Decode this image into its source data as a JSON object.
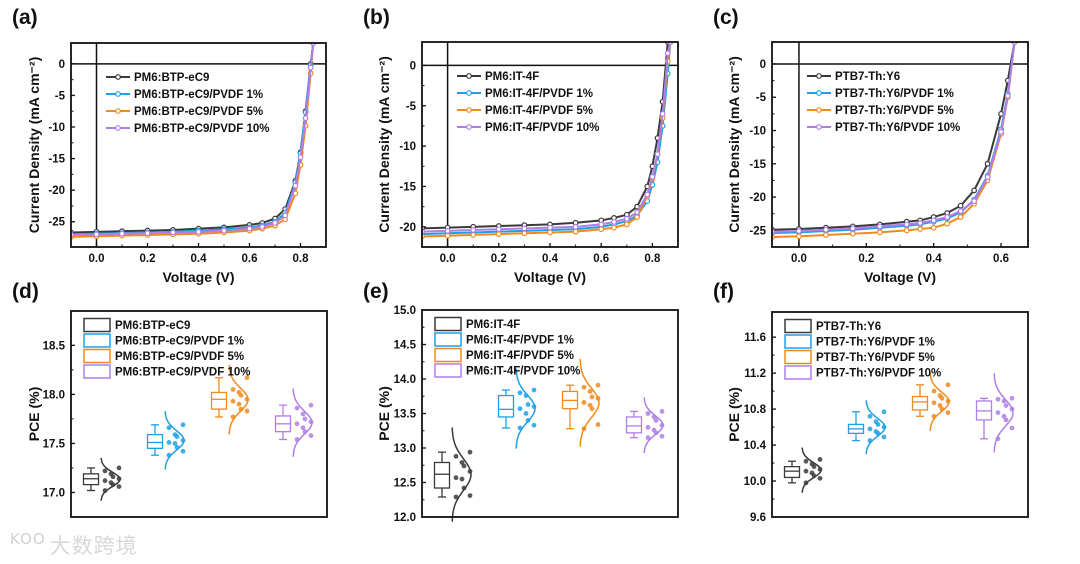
{
  "colors": {
    "s0": "#3a3a3a",
    "s1": "#1ea0e6",
    "s2": "#f08a1c",
    "s3": "#b07ee8"
  },
  "watermark": {
    "logo": "KOO",
    "text": "大数跨境"
  },
  "chart_data": [
    {
      "panel": "(a)",
      "type": "line",
      "xlabel": "Voltage (V)",
      "ylabel": "Current Density (mA cm⁻²)",
      "xlim": [
        -0.1,
        0.9
      ],
      "ylim": [
        -29,
        3.3
      ],
      "xticks": [
        "0.0",
        "0.2",
        "0.4",
        "0.6",
        "0.8"
      ],
      "xtick_values": [
        0,
        0.2,
        0.4,
        0.6,
        0.8
      ],
      "yticks": [
        "0",
        "-5",
        "-10",
        "-15",
        "-20",
        "-25"
      ],
      "ytick_values": [
        0,
        -5,
        -10,
        -15,
        -20,
        -25
      ],
      "x": [
        -0.1,
        0,
        0.1,
        0.2,
        0.3,
        0.4,
        0.5,
        0.6,
        0.65,
        0.7,
        0.74,
        0.78,
        0.8,
        0.82,
        0.84,
        0.85
      ],
      "series": [
        {
          "name": "PM6:BTP-eC9",
          "values": [
            -26.7,
            -26.6,
            -26.5,
            -26.4,
            -26.3,
            -26.1,
            -25.9,
            -25.5,
            -25.2,
            -24.5,
            -23,
            -18.5,
            -14,
            -7.5,
            0,
            3.3
          ]
        },
        {
          "name": "PM6:BTP-eC9/PVDF 1%",
          "values": [
            -27.0,
            -26.9,
            -26.8,
            -26.7,
            -26.6,
            -26.4,
            -26.2,
            -25.9,
            -25.6,
            -25.0,
            -23.6,
            -18.8,
            -14.2,
            -7.7,
            -0.2,
            3.3
          ]
        },
        {
          "name": "PM6:BTP-eC9/PVDF 5%",
          "values": [
            -27.4,
            -27.3,
            -27.2,
            -27.1,
            -27.0,
            -26.9,
            -26.7,
            -26.4,
            -26.1,
            -25.6,
            -24.6,
            -20.5,
            -16,
            -9.8,
            -1.5,
            3.3
          ]
        },
        {
          "name": "PM6:BTP-eC9/PVDF 10%",
          "values": [
            -27.1,
            -27.0,
            -26.9,
            -26.8,
            -26.7,
            -26.6,
            -26.4,
            -26.1,
            -25.8,
            -25.2,
            -24.0,
            -19.3,
            -14.8,
            -8.6,
            -0.6,
            3.3
          ]
        }
      ]
    },
    {
      "panel": "(b)",
      "type": "line",
      "xlabel": "Voltage (V)",
      "ylabel": "Current Density (mA cm⁻²)",
      "xlim": [
        -0.1,
        0.9
      ],
      "ylim": [
        -22.5,
        2.9
      ],
      "xticks": [
        "0.0",
        "0.2",
        "0.4",
        "0.6",
        "0.8"
      ],
      "xtick_values": [
        0,
        0.2,
        0.4,
        0.6,
        0.8
      ],
      "yticks": [
        "0",
        "-5",
        "-10",
        "-15",
        "-20"
      ],
      "ytick_values": [
        0,
        -5,
        -10,
        -15,
        -20
      ],
      "x": [
        -0.1,
        0,
        0.1,
        0.2,
        0.3,
        0.4,
        0.5,
        0.6,
        0.65,
        0.7,
        0.74,
        0.78,
        0.8,
        0.82,
        0.84,
        0.86,
        0.87
      ],
      "series": [
        {
          "name": "PM6:IT-4F",
          "values": [
            -20.2,
            -20.1,
            -20.0,
            -19.9,
            -19.8,
            -19.7,
            -19.5,
            -19.2,
            -18.9,
            -18.5,
            -17.5,
            -15,
            -12.5,
            -9,
            -4.5,
            2.9,
            2.9
          ]
        },
        {
          "name": "PM6:IT-4F/PVDF 1%",
          "values": [
            -20.9,
            -20.8,
            -20.7,
            -20.6,
            -20.5,
            -20.4,
            -20.3,
            -20.0,
            -19.7,
            -19.3,
            -18.6,
            -16.8,
            -14.8,
            -12,
            -7.5,
            -1,
            2.9
          ]
        },
        {
          "name": "PM6:IT-4F/PVDF 5%",
          "values": [
            -21.2,
            -21.1,
            -21.0,
            -20.9,
            -20.8,
            -20.7,
            -20.6,
            -20.3,
            -20.1,
            -19.7,
            -18.8,
            -16.2,
            -14,
            -11,
            -6.5,
            0.5,
            2.9
          ]
        },
        {
          "name": "PM6:IT-4F/PVDF 10%",
          "values": [
            -20.6,
            -20.5,
            -20.4,
            -20.3,
            -20.2,
            -20.1,
            -20.0,
            -19.7,
            -19.4,
            -19.0,
            -18.2,
            -16,
            -13.8,
            -11,
            -6,
            1.5,
            2.9
          ]
        }
      ]
    },
    {
      "panel": "(c)",
      "type": "line",
      "xlabel": "Voltage (V)",
      "ylabel": "Current Density (mA cm⁻²)",
      "xlim": [
        -0.08,
        0.68
      ],
      "ylim": [
        -27.5,
        3.3
      ],
      "xticks": [
        "0.0",
        "0.2",
        "0.4",
        "0.6"
      ],
      "xtick_values": [
        0,
        0.2,
        0.4,
        0.6
      ],
      "yticks": [
        "0",
        "-5",
        "-10",
        "-15",
        "-20",
        "-25"
      ],
      "ytick_values": [
        0,
        -5,
        -10,
        -15,
        -20,
        -25
      ],
      "x": [
        -0.08,
        0,
        0.08,
        0.16,
        0.24,
        0.32,
        0.36,
        0.4,
        0.44,
        0.48,
        0.52,
        0.56,
        0.6,
        0.62,
        0.64
      ],
      "series": [
        {
          "name": "PTB7-Th:Y6",
          "values": [
            -24.9,
            -24.8,
            -24.6,
            -24.4,
            -24.1,
            -23.7,
            -23.5,
            -23.0,
            -22.4,
            -21.3,
            -19,
            -15,
            -7.5,
            -2.5,
            3.3
          ]
        },
        {
          "name": "PTB7-Th:Y6/PVDF 1%",
          "values": [
            -25.4,
            -25.3,
            -25.1,
            -24.9,
            -24.6,
            -24.3,
            -24.1,
            -23.7,
            -23.2,
            -22.3,
            -20.4,
            -16.8,
            -9.8,
            -4.5,
            3.3
          ]
        },
        {
          "name": "PTB7-Th:Y6/PVDF 5%",
          "values": [
            -26.0,
            -25.9,
            -25.7,
            -25.5,
            -25.3,
            -25.0,
            -24.8,
            -24.6,
            -24.0,
            -23.0,
            -21,
            -17.5,
            -10.5,
            -5,
            3.3
          ]
        },
        {
          "name": "PTB7-Th:Y6/PVDF 10%",
          "values": [
            -25.2,
            -25.1,
            -24.9,
            -24.7,
            -24.4,
            -24.1,
            -23.9,
            -23.5,
            -23.0,
            -22.1,
            -20.6,
            -17,
            -10.2,
            -4.8,
            3.3
          ]
        }
      ]
    },
    {
      "panel": "(d)",
      "type": "box",
      "ylabel": "PCE (%)",
      "ylim": [
        16.75,
        18.85
      ],
      "yticks": [
        "17.0",
        "17.5",
        "18.0",
        "18.5"
      ],
      "ytick_values": [
        17.0,
        17.5,
        18.0,
        18.5
      ],
      "series": [
        {
          "name": "PM6:BTP-eC9",
          "whisker": [
            17.02,
            17.25
          ],
          "box": [
            17.08,
            17.19
          ],
          "median": 17.14,
          "points": [
            17.02,
            17.06,
            17.08,
            17.1,
            17.12,
            17.14,
            17.16,
            17.19,
            17.22,
            17.25
          ]
        },
        {
          "name": "PM6:BTP-eC9/PVDF 1%",
          "whisker": [
            17.38,
            17.69
          ],
          "box": [
            17.45,
            17.59
          ],
          "median": 17.51,
          "points": [
            17.38,
            17.42,
            17.46,
            17.5,
            17.51,
            17.53,
            17.57,
            17.59,
            17.66,
            17.69
          ]
        },
        {
          "name": "PM6:BTP-eC9/PVDF 5%",
          "whisker": [
            17.77,
            18.17
          ],
          "box": [
            17.85,
            18.02
          ],
          "median": 17.95,
          "points": [
            17.77,
            17.83,
            17.85,
            17.9,
            17.93,
            17.95,
            17.99,
            18.02,
            18.05,
            18.17
          ]
        },
        {
          "name": "PM6:BTP-eC9/PVDF 10%",
          "whisker": [
            17.54,
            17.89
          ],
          "box": [
            17.62,
            17.78
          ],
          "median": 17.7,
          "points": [
            17.54,
            17.58,
            17.62,
            17.66,
            17.7,
            17.72,
            17.75,
            17.8,
            17.86,
            17.89
          ]
        }
      ]
    },
    {
      "panel": "(e)",
      "type": "box",
      "ylabel": "PCE (%)",
      "ylim": [
        12.0,
        15.0
      ],
      "yticks": [
        "12.0",
        "12.5",
        "13.0",
        "13.5",
        "14.0",
        "14.5",
        "15.0"
      ],
      "ytick_values": [
        12.0,
        12.5,
        13.0,
        13.5,
        14.0,
        14.5,
        15.0
      ],
      "series": [
        {
          "name": "PM6:IT-4F",
          "whisker": [
            12.29,
            12.94
          ],
          "box": [
            12.42,
            12.79
          ],
          "median": 12.62,
          "points": [
            12.29,
            12.31,
            12.42,
            12.55,
            12.57,
            12.66,
            12.74,
            12.79,
            12.88,
            12.94
          ]
        },
        {
          "name": "PM6:IT-4F/PVDF 1%",
          "whisker": [
            13.29,
            13.84
          ],
          "box": [
            13.45,
            13.76
          ],
          "median": 13.56,
          "points": [
            13.29,
            13.33,
            13.4,
            13.5,
            13.57,
            13.6,
            13.63,
            13.76,
            13.8,
            13.84
          ]
        },
        {
          "name": "PM6:IT-4F/PVDF 5%",
          "whisker": [
            13.28,
            13.91
          ],
          "box": [
            13.57,
            13.82
          ],
          "median": 13.69,
          "points": [
            13.28,
            13.34,
            13.57,
            13.62,
            13.66,
            13.72,
            13.74,
            13.82,
            13.88,
            13.91
          ]
        },
        {
          "name": "PM6:IT-4F/PVDF 10%",
          "whisker": [
            13.15,
            13.53
          ],
          "box": [
            13.22,
            13.45
          ],
          "median": 13.32,
          "points": [
            13.15,
            13.17,
            13.22,
            13.26,
            13.3,
            13.33,
            13.4,
            13.45,
            13.5,
            13.53
          ]
        }
      ]
    },
    {
      "panel": "(f)",
      "type": "box",
      "ylabel": "PCE (%)",
      "ylim": [
        9.6,
        11.88
      ],
      "yticks": [
        "9.6",
        "10.0",
        "10.4",
        "10.8",
        "11.2",
        "11.6"
      ],
      "ytick_values": [
        9.6,
        10.0,
        10.4,
        10.8,
        11.2,
        11.6
      ],
      "series": [
        {
          "name": "PTB7-Th:Y6",
          "whisker": [
            9.98,
            10.22
          ],
          "box": [
            10.04,
            10.16
          ],
          "median": 10.11,
          "points": [
            9.98,
            10.03,
            10.06,
            10.09,
            10.11,
            10.13,
            10.16,
            10.19,
            10.22,
            10.24
          ]
        },
        {
          "name": "PTB7-Th:Y6/PVDF 1%",
          "whisker": [
            10.45,
            10.77
          ],
          "box": [
            10.53,
            10.63
          ],
          "median": 10.58,
          "points": [
            10.45,
            10.49,
            10.53,
            10.55,
            10.58,
            10.6,
            10.63,
            10.66,
            10.72,
            10.77
          ]
        },
        {
          "name": "PTB7-Th:Y6/PVDF 5%",
          "whisker": [
            10.72,
            11.07
          ],
          "box": [
            10.79,
            10.94
          ],
          "median": 10.88,
          "points": [
            10.72,
            10.76,
            10.8,
            10.84,
            10.87,
            10.89,
            10.92,
            10.95,
            11.0,
            11.07
          ]
        },
        {
          "name": "PTB7-Th:Y6/PVDF 10%",
          "whisker": [
            10.47,
            10.92
          ],
          "box": [
            10.68,
            10.89
          ],
          "median": 10.78,
          "points": [
            10.47,
            10.59,
            10.68,
            10.72,
            10.76,
            10.8,
            10.84,
            10.89,
            10.91,
            10.92
          ]
        }
      ]
    }
  ]
}
